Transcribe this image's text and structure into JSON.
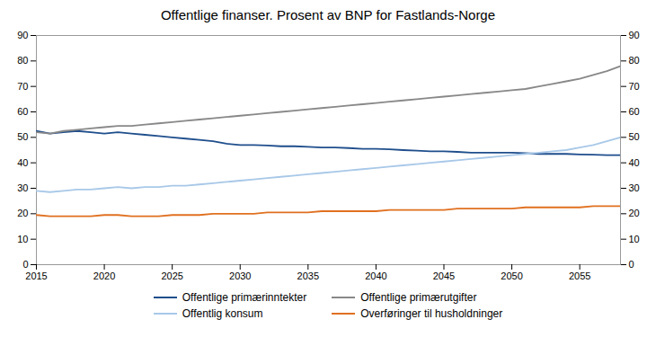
{
  "chart_data": {
    "type": "line",
    "title": "Offentlige finanser. Prosent av BNP for Fastlands-Norge",
    "x": [
      2015,
      2016,
      2017,
      2018,
      2019,
      2020,
      2021,
      2022,
      2023,
      2024,
      2025,
      2026,
      2027,
      2028,
      2029,
      2030,
      2031,
      2032,
      2033,
      2034,
      2035,
      2036,
      2037,
      2038,
      2039,
      2040,
      2041,
      2042,
      2043,
      2044,
      2045,
      2046,
      2047,
      2048,
      2049,
      2050,
      2051,
      2052,
      2053,
      2054,
      2055,
      2056,
      2057,
      2058
    ],
    "series": [
      {
        "name": "Offentlige primærinntekter",
        "color": "#1f4e8c",
        "values": [
          52.5,
          51.5,
          52.0,
          52.5,
          52.0,
          51.5,
          52.0,
          51.5,
          51.0,
          50.5,
          50.0,
          49.5,
          49.0,
          48.5,
          47.5,
          47.0,
          47.0,
          46.8,
          46.5,
          46.5,
          46.3,
          46.0,
          46.0,
          45.8,
          45.5,
          45.5,
          45.3,
          45.0,
          44.8,
          44.5,
          44.5,
          44.3,
          44.0,
          44.0,
          44.0,
          44.0,
          43.8,
          43.5,
          43.5,
          43.5,
          43.3,
          43.2,
          43.0,
          43.0
        ]
      },
      {
        "name": "Offentlige primærutgifter",
        "color": "#888888",
        "values": [
          52.0,
          51.5,
          52.5,
          53.0,
          53.5,
          54.0,
          54.5,
          54.5,
          55.0,
          55.5,
          56.0,
          56.5,
          57.0,
          57.5,
          58.0,
          58.5,
          59.0,
          59.5,
          60.0,
          60.5,
          61.0,
          61.5,
          62.0,
          62.5,
          63.0,
          63.5,
          64.0,
          64.5,
          65.0,
          65.5,
          66.0,
          66.5,
          67.0,
          67.5,
          68.0,
          68.5,
          69.0,
          70.0,
          71.0,
          72.0,
          73.0,
          74.5,
          76.0,
          78.0
        ]
      },
      {
        "name": "Offentlig konsum",
        "color": "#a8c8e8",
        "values": [
          29.0,
          28.5,
          29.0,
          29.5,
          29.5,
          30.0,
          30.5,
          30.0,
          30.5,
          30.5,
          31.0,
          31.0,
          31.5,
          32.0,
          32.5,
          33.0,
          33.5,
          34.0,
          34.5,
          35.0,
          35.5,
          36.0,
          36.5,
          37.0,
          37.5,
          38.0,
          38.5,
          39.0,
          39.5,
          40.0,
          40.5,
          41.0,
          41.5,
          42.0,
          42.5,
          43.0,
          43.5,
          44.0,
          44.5,
          45.0,
          46.0,
          47.0,
          48.5,
          50.0
        ]
      },
      {
        "name": "Overføringer til husholdninger",
        "color": "#e07020",
        "values": [
          19.5,
          19.0,
          19.0,
          19.0,
          19.0,
          19.5,
          19.5,
          19.0,
          19.0,
          19.0,
          19.5,
          19.5,
          19.5,
          20.0,
          20.0,
          20.0,
          20.0,
          20.5,
          20.5,
          20.5,
          20.5,
          21.0,
          21.0,
          21.0,
          21.0,
          21.0,
          21.5,
          21.5,
          21.5,
          21.5,
          21.5,
          22.0,
          22.0,
          22.0,
          22.0,
          22.0,
          22.5,
          22.5,
          22.5,
          22.5,
          22.5,
          23.0,
          23.0,
          23.0
        ]
      }
    ],
    "xlim": [
      2015,
      2058
    ],
    "xticks": [
      2015,
      2020,
      2025,
      2030,
      2035,
      2040,
      2045,
      2050,
      2055
    ],
    "ylim": [
      0,
      90
    ],
    "yticks": [
      0,
      10,
      20,
      30,
      40,
      50,
      60,
      70,
      80,
      90
    ],
    "grid": false,
    "legend": "bottom"
  }
}
